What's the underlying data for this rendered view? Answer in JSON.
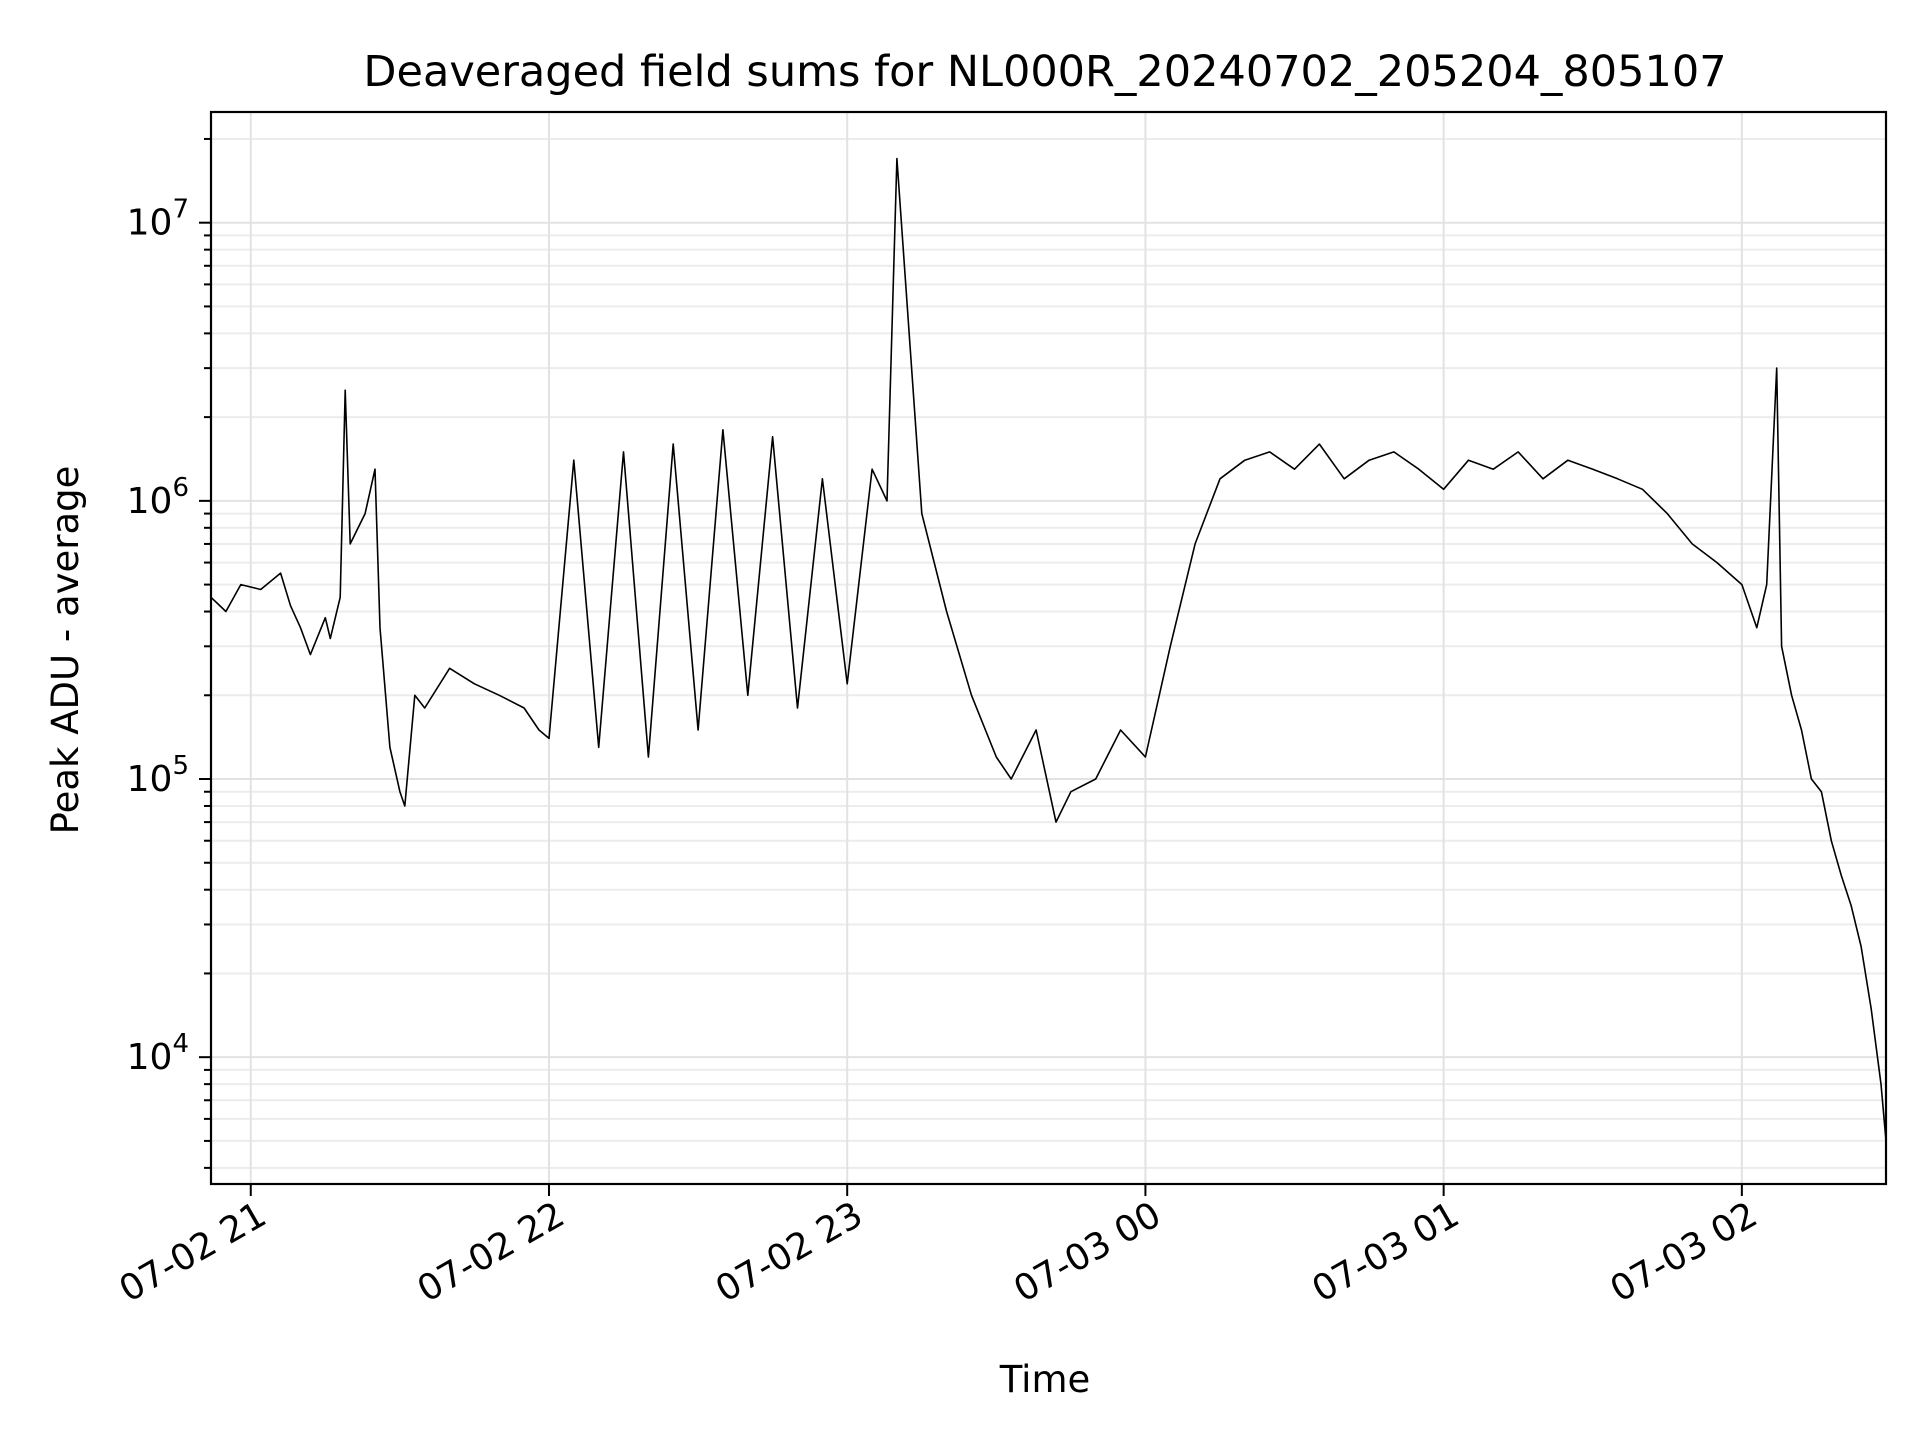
{
  "chart_data": {
    "type": "line",
    "title": "Deaveraged field sums for NL000R_20240702_205204_805107",
    "xlabel": "Time",
    "ylabel": "Peak ADU - average",
    "y_scale": "log",
    "ylim": [
      3500,
      25000000
    ],
    "xlim": [
      "2024-07-02 20:52",
      "2024-07-03 02:29"
    ],
    "grid": true,
    "line_color": "#000000",
    "x_ticks": [
      {
        "value": "2024-07-02 21:00",
        "label": "07-02 21"
      },
      {
        "value": "2024-07-02 22:00",
        "label": "07-02 22"
      },
      {
        "value": "2024-07-02 23:00",
        "label": "07-02 23"
      },
      {
        "value": "2024-07-03 00:00",
        "label": "07-03 00"
      },
      {
        "value": "2024-07-03 01:00",
        "label": "07-03 01"
      },
      {
        "value": "2024-07-03 02:00",
        "label": "07-03 02"
      }
    ],
    "y_ticks": [
      {
        "value": 10000,
        "base": "10",
        "exp": "4"
      },
      {
        "value": 100000,
        "base": "10",
        "exp": "5"
      },
      {
        "value": 1000000,
        "base": "10",
        "exp": "6"
      },
      {
        "value": 10000000,
        "base": "10",
        "exp": "7"
      }
    ],
    "series": [
      {
        "x": [
          "2024-07-02 20:52",
          "2024-07-02 20:55",
          "2024-07-02 20:58",
          "2024-07-02 21:02",
          "2024-07-02 21:06",
          "2024-07-02 21:08",
          "2024-07-02 21:10",
          "2024-07-02 21:12",
          "2024-07-02 21:15",
          "2024-07-02 21:16",
          "2024-07-02 21:18",
          "2024-07-02 21:19",
          "2024-07-02 21:20",
          "2024-07-02 21:23",
          "2024-07-02 21:25",
          "2024-07-02 21:26",
          "2024-07-02 21:28",
          "2024-07-02 21:30",
          "2024-07-02 21:31",
          "2024-07-02 21:33",
          "2024-07-02 21:35",
          "2024-07-02 21:40",
          "2024-07-02 21:45",
          "2024-07-02 21:50",
          "2024-07-02 21:55",
          "2024-07-02 21:58",
          "2024-07-02 22:00",
          "2024-07-02 22:05",
          "2024-07-02 22:10",
          "2024-07-02 22:15",
          "2024-07-02 22:20",
          "2024-07-02 22:25",
          "2024-07-02 22:30",
          "2024-07-02 22:35",
          "2024-07-02 22:40",
          "2024-07-02 22:45",
          "2024-07-02 22:50",
          "2024-07-02 22:55",
          "2024-07-02 23:00",
          "2024-07-02 23:05",
          "2024-07-02 23:08",
          "2024-07-02 23:10",
          "2024-07-02 23:15",
          "2024-07-02 23:20",
          "2024-07-02 23:25",
          "2024-07-02 23:30",
          "2024-07-02 23:33",
          "2024-07-02 23:38",
          "2024-07-02 23:42",
          "2024-07-02 23:45",
          "2024-07-02 23:50",
          "2024-07-02 23:55",
          "2024-07-03 00:00",
          "2024-07-03 00:05",
          "2024-07-03 00:10",
          "2024-07-03 00:15",
          "2024-07-03 00:20",
          "2024-07-03 00:25",
          "2024-07-03 00:30",
          "2024-07-03 00:35",
          "2024-07-03 00:40",
          "2024-07-03 00:45",
          "2024-07-03 00:50",
          "2024-07-03 00:55",
          "2024-07-03 01:00",
          "2024-07-03 01:05",
          "2024-07-03 01:10",
          "2024-07-03 01:15",
          "2024-07-03 01:20",
          "2024-07-03 01:25",
          "2024-07-03 01:30",
          "2024-07-03 01:35",
          "2024-07-03 01:40",
          "2024-07-03 01:45",
          "2024-07-03 01:50",
          "2024-07-03 01:55",
          "2024-07-03 02:00",
          "2024-07-03 02:03",
          "2024-07-03 02:05",
          "2024-07-03 02:07",
          "2024-07-03 02:08",
          "2024-07-03 02:10",
          "2024-07-03 02:12",
          "2024-07-03 02:14",
          "2024-07-03 02:16",
          "2024-07-03 02:18",
          "2024-07-03 02:20",
          "2024-07-03 02:22",
          "2024-07-03 02:24",
          "2024-07-03 02:26",
          "2024-07-03 02:28",
          "2024-07-03 02:29"
        ],
        "values": [
          450000,
          400000,
          500000,
          480000,
          550000,
          420000,
          350000,
          280000,
          380000,
          320000,
          450000,
          2500000,
          700000,
          900000,
          1300000,
          350000,
          130000,
          90000,
          80000,
          200000,
          180000,
          250000,
          220000,
          200000,
          180000,
          150000,
          140000,
          1400000,
          130000,
          1500000,
          120000,
          1600000,
          150000,
          1800000,
          200000,
          1700000,
          180000,
          1200000,
          220000,
          1300000,
          1000000,
          17000000,
          900000,
          400000,
          200000,
          120000,
          100000,
          150000,
          70000,
          90000,
          100000,
          150000,
          120000,
          300000,
          700000,
          1200000,
          1400000,
          1500000,
          1300000,
          1600000,
          1200000,
          1400000,
          1500000,
          1300000,
          1100000,
          1400000,
          1300000,
          1500000,
          1200000,
          1400000,
          1300000,
          1200000,
          1100000,
          900000,
          700000,
          600000,
          500000,
          350000,
          500000,
          3000000,
          300000,
          200000,
          150000,
          100000,
          90000,
          60000,
          45000,
          35000,
          25000,
          15000,
          8000,
          5000
        ]
      }
    ]
  }
}
